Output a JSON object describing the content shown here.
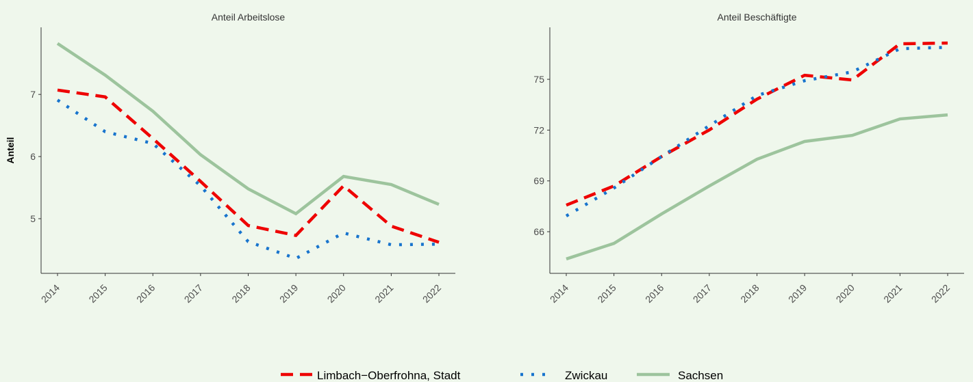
{
  "chart_data": [
    {
      "type": "line",
      "title": "Anteil Arbeitslose",
      "ylabel": "Anteil",
      "categories": [
        "2014",
        "2015",
        "2016",
        "2017",
        "2018",
        "2019",
        "2020",
        "2021",
        "2022"
      ],
      "ylim": [
        4.12,
        8.08
      ],
      "yticks": [
        5,
        6,
        7
      ],
      "series": [
        {
          "name": "Limbach−Oberfrohna, Stadt",
          "color": "#ee0000",
          "linetype": "dashed",
          "values": [
            7.07,
            6.96,
            6.29,
            5.6,
            4.89,
            4.73,
            5.53,
            4.88,
            4.62
          ]
        },
        {
          "name": "Zwickau",
          "color": "#1874cd",
          "linetype": "dotted",
          "values": [
            6.91,
            6.4,
            6.21,
            5.53,
            4.63,
            4.36,
            4.77,
            4.58,
            4.59
          ]
        },
        {
          "name": "Sachsen",
          "color": "#9dc49d",
          "linetype": "solid",
          "values": [
            7.82,
            7.31,
            6.73,
            6.03,
            5.48,
            5.08,
            5.68,
            5.55,
            5.23
          ]
        }
      ]
    },
    {
      "type": "line",
      "title": "Anteil Beschäftigte",
      "categories": [
        "2014",
        "2015",
        "2016",
        "2017",
        "2018",
        "2019",
        "2020",
        "2021",
        "2022"
      ],
      "ylim": [
        63.54,
        78.07
      ],
      "yticks": [
        66,
        69,
        72,
        75
      ],
      "series": [
        {
          "name": "Limbach−Oberfrohna, Stadt",
          "color": "#ee0000",
          "linetype": "dashed",
          "values": [
            67.57,
            68.7,
            70.44,
            72.01,
            73.83,
            75.24,
            74.96,
            77.1,
            77.14
          ]
        },
        {
          "name": "Zwickau",
          "color": "#1874cd",
          "linetype": "dotted",
          "values": [
            66.93,
            68.58,
            70.44,
            72.26,
            74.04,
            74.92,
            75.44,
            76.81,
            76.89
          ]
        },
        {
          "name": "Sachsen",
          "color": "#9dc49d",
          "linetype": "solid",
          "values": [
            64.39,
            65.31,
            67.05,
            68.7,
            70.28,
            71.33,
            71.69,
            72.66,
            72.9
          ]
        }
      ]
    }
  ]
}
